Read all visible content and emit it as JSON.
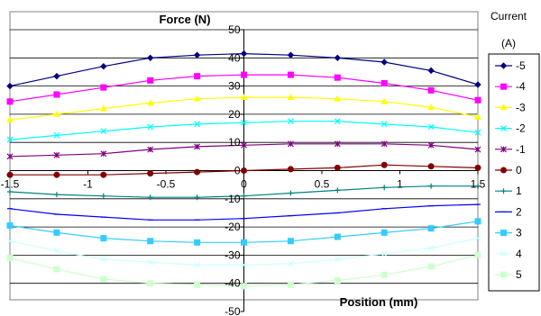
{
  "chart_data": {
    "type": "line",
    "title": "Force (N)",
    "xlabel": "Position (mm)",
    "ylabel": "Force (N)",
    "legend_title": "Current (A)",
    "legend_position": "right",
    "xlim": [
      -1.5,
      1.5
    ],
    "ylim": [
      -50,
      50
    ],
    "x_ticks": [
      "-1.5",
      "-1",
      "-0.5",
      "0",
      "0.5",
      "1",
      "1.5"
    ],
    "y_ticks": [
      "50",
      "40",
      "30",
      "20",
      "10",
      "0",
      "-10",
      "-20",
      "-30",
      "-40",
      "-50"
    ],
    "grid": "horizontal",
    "x": [
      -1.5,
      -1.2,
      -0.9,
      -0.6,
      -0.3,
      0,
      0.3,
      0.6,
      0.9,
      1.2,
      1.5
    ],
    "series": [
      {
        "name": "-5",
        "color": "#000080",
        "marker": "diamond",
        "values": [
          30,
          33.5,
          37,
          40,
          41,
          41.5,
          41,
          40,
          38.5,
          35.5,
          30.5
        ]
      },
      {
        "name": "-4",
        "color": "#ff00ff",
        "marker": "square",
        "values": [
          24.5,
          27,
          29.5,
          32,
          33.5,
          34,
          34,
          33,
          31,
          28.5,
          25
        ]
      },
      {
        "name": "-3",
        "color": "#ffff00",
        "marker": "triangle",
        "values": [
          18,
          20,
          22,
          24,
          25.5,
          26,
          26,
          25.5,
          24.5,
          22.5,
          19
        ]
      },
      {
        "name": "-2",
        "color": "#00ffff",
        "marker": "x",
        "values": [
          11,
          12.5,
          14,
          15.5,
          16.5,
          17,
          17.5,
          17.5,
          16.5,
          15.5,
          13.5
        ]
      },
      {
        "name": "-1",
        "color": "#800080",
        "marker": "star",
        "values": [
          5,
          5.5,
          6,
          7.5,
          8.5,
          9,
          9.5,
          9.5,
          9.5,
          9,
          7.5
        ]
      },
      {
        "name": "0",
        "color": "#800000",
        "marker": "circle",
        "values": [
          -1.5,
          -1.5,
          -1.5,
          -1,
          -0.5,
          0,
          0.5,
          1,
          2,
          1.5,
          1
        ]
      },
      {
        "name": "1",
        "color": "#008080",
        "marker": "plus",
        "values": [
          -7.5,
          -8.5,
          -9,
          -9.5,
          -9.5,
          -9,
          -8,
          -7,
          -6,
          -5.5,
          -5.5
        ]
      },
      {
        "name": "2",
        "color": "#0000ff",
        "marker": "dash",
        "values": [
          -13.5,
          -15.5,
          -16.5,
          -17.5,
          -17.5,
          -17,
          -16,
          -15,
          -13.5,
          -12.5,
          -12
        ]
      },
      {
        "name": "3",
        "color": "#33ccff",
        "marker": "square",
        "values": [
          -19.5,
          -22,
          -24,
          -25,
          -25.5,
          -25.5,
          -25,
          -23.5,
          -22,
          -20.5,
          -18
        ]
      },
      {
        "name": "4",
        "color": "#ccffff",
        "marker": "x",
        "values": [
          -25,
          -28.5,
          -31.5,
          -32.5,
          -33.5,
          -33.5,
          -33,
          -31.5,
          -29.5,
          -27.5,
          -24
        ]
      },
      {
        "name": "5",
        "color": "#ccffcc",
        "marker": "square",
        "values": [
          -31,
          -35,
          -38.5,
          -40,
          -40.5,
          -41,
          -40.5,
          -39,
          -37,
          -34,
          -30
        ]
      }
    ]
  }
}
